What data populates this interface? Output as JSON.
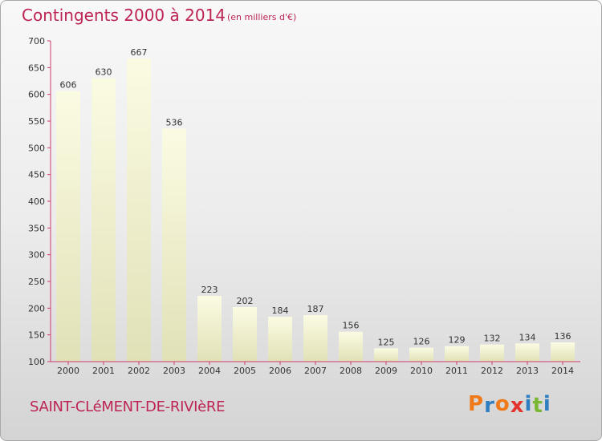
{
  "header": {
    "title": "Contingents 2000 à 2014",
    "unit": "(en milliers d'€)"
  },
  "footer": {
    "commune": "SAINT-CLéMENT-DE-RIVIèRE",
    "logo_letters": [
      "P",
      "r",
      "o",
      "x",
      "i",
      "t",
      "i"
    ]
  },
  "colors": {
    "title": "#bd2453",
    "axis": "#cd3c6c",
    "bar_top": "#fbfbe3",
    "bar_bottom": "#e1e1b7",
    "logo": [
      "#f07a19",
      "#2f7ec2",
      "#f07a19",
      "#e3342f",
      "#2f7ec2",
      "#7ab733",
      "#2f7ec2"
    ]
  },
  "chart_data": {
    "type": "bar",
    "categories": [
      "2000",
      "2001",
      "2002",
      "2003",
      "2004",
      "2005",
      "2006",
      "2007",
      "2008",
      "2009",
      "2010",
      "2011",
      "2012",
      "2013",
      "2014"
    ],
    "values": [
      606,
      630,
      667,
      536,
      223,
      202,
      184,
      187,
      156,
      125,
      126,
      129,
      132,
      134,
      136
    ],
    "ylim": [
      100,
      700
    ],
    "yticks": [
      100,
      150,
      200,
      250,
      300,
      350,
      400,
      450,
      500,
      550,
      600,
      650,
      700
    ],
    "grid": false
  }
}
